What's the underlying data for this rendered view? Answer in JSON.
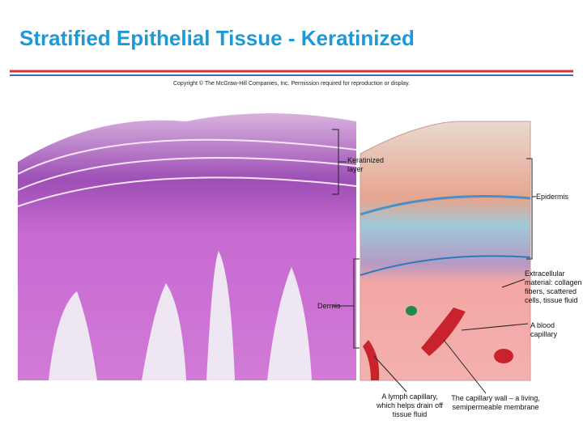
{
  "header": {
    "title": "Stratified Epithelial Tissue - Keratinized",
    "copyright": "Copyright © The McGraw-Hill Companies, Inc. Permission required for reproduction or display."
  },
  "labels": {
    "keratinized": "Keratinized layer",
    "epidermis": "Epidermis",
    "extracellular": "Extracellular material: collagen fibers, scattered cells, tissue fluid",
    "dermis": "Dermis",
    "blood_capillary": "A blood capillary",
    "lymph_capillary": "A lymph capillary, which helps drain off tissue fluid",
    "capillary_wall": "The capillary wall – a living, semipermeable membrane"
  }
}
